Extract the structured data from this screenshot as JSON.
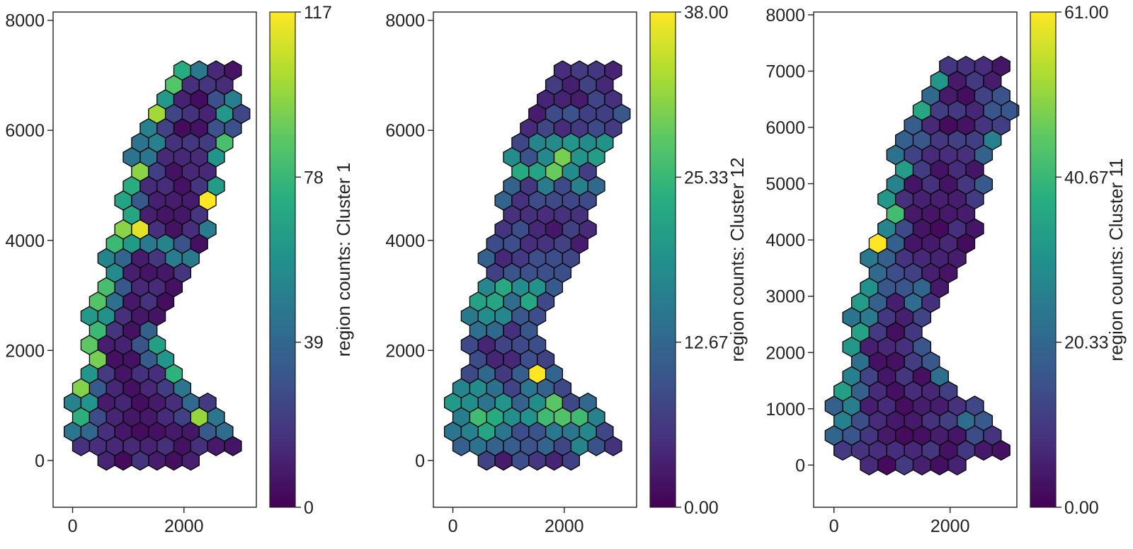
{
  "chart_data": [
    {
      "type": "heatmap",
      "subtype": "hexbin",
      "title": "",
      "xlabel": "",
      "ylabel": "",
      "xlim": [
        -350,
        3300
      ],
      "ylim": [
        -850,
        8150
      ],
      "xticks": [
        0,
        2000
      ],
      "xtick_labels": [
        "0",
        "2000"
      ],
      "yticks": [
        0,
        2000,
        4000,
        6000,
        8000
      ],
      "ytick_labels": [
        "0",
        "2000",
        "4000",
        "6000",
        "8000"
      ],
      "colorbar": {
        "label": "region counts: Cluster 1",
        "colormap": "viridis",
        "min": 0,
        "max": 117,
        "ticks": [
          0,
          39,
          78,
          117
        ],
        "tick_labels": [
          "0",
          "39",
          "78",
          "117"
        ]
      },
      "max_bin": {
        "x": 2570,
        "y": 4780,
        "value": 117
      },
      "high_bins": [
        {
          "x": 1210,
          "y": 4170,
          "value": 112
        },
        {
          "x": 1500,
          "y": 6340,
          "value": 100
        },
        {
          "x": 2270,
          "y": 880,
          "value": 98
        },
        {
          "x": 330,
          "y": 1920,
          "value": 92
        }
      ],
      "grid": false,
      "legend": "none"
    },
    {
      "type": "heatmap",
      "subtype": "hexbin",
      "title": "",
      "xlabel": "",
      "ylabel": "",
      "xlim": [
        -350,
        3300
      ],
      "ylim": [
        -850,
        8150
      ],
      "xticks": [
        0,
        2000
      ],
      "xtick_labels": [
        "0",
        "2000"
      ],
      "yticks": [
        0,
        2000,
        4000,
        6000,
        8000
      ],
      "ytick_labels": [
        "0",
        "2000",
        "4000",
        "6000",
        "8000"
      ],
      "colorbar": {
        "label": "region counts: Cluster 12",
        "colormap": "viridis",
        "min": 0,
        "max": 38,
        "ticks": [
          0,
          12.67,
          25.33,
          38
        ],
        "tick_labels": [
          "0.00",
          "12.67",
          "25.33",
          "38.00"
        ]
      },
      "max_bin": {
        "x": 1500,
        "y": 1570,
        "value": 38
      },
      "high_bins": [
        {
          "x": 2000,
          "y": 5600,
          "value": 30
        },
        {
          "x": 1800,
          "y": 5280,
          "value": 29
        },
        {
          "x": 1800,
          "y": 950,
          "value": 28
        }
      ],
      "grid": false,
      "legend": "none"
    },
    {
      "type": "heatmap",
      "subtype": "hexbin",
      "title": "",
      "xlabel": "",
      "ylabel": "",
      "xlim": [
        -350,
        3150
      ],
      "ylim": [
        -750,
        8050
      ],
      "xticks": [
        0,
        2000
      ],
      "xtick_labels": [
        "0",
        "2000"
      ],
      "yticks": [
        0,
        1000,
        2000,
        3000,
        4000,
        5000,
        6000,
        7000,
        8000
      ],
      "ytick_labels": [
        "0",
        "1000",
        "2000",
        "3000",
        "4000",
        "5000",
        "6000",
        "7000",
        "8000"
      ],
      "colorbar": {
        "label": "region counts: Cluster 11",
        "colormap": "viridis",
        "min": 0,
        "max": 61,
        "ticks": [
          0,
          20.33,
          40.67,
          61
        ],
        "tick_labels": [
          "0.00",
          "20.33",
          "40.67",
          "61.00"
        ]
      },
      "max_bin": {
        "x": 750,
        "y": 4080,
        "value": 61
      },
      "high_bins": [
        {
          "x": 900,
          "y": 4420,
          "value": 42
        },
        {
          "x": 1500,
          "y": 6300,
          "value": 36
        },
        {
          "x": 330,
          "y": 2260,
          "value": 35
        }
      ],
      "grid": false,
      "legend": "none"
    }
  ]
}
